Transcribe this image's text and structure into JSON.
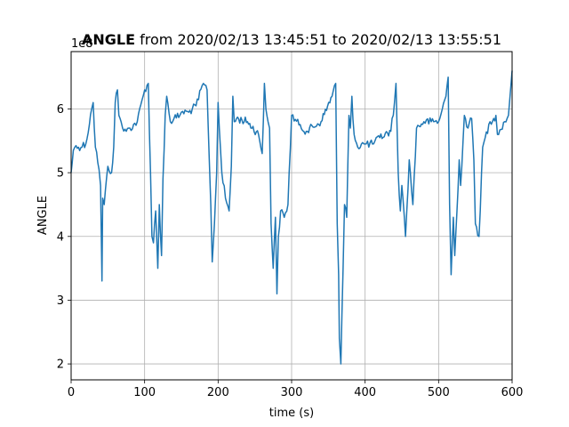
{
  "chart_data": {
    "type": "line",
    "title_bold": "ANGLE",
    "title_rest": " from 2020/02/13 13:45:51 to 2020/02/13 13:55:51",
    "xlabel": "time (s)",
    "ylabel": "ANGLE",
    "offset_label": "1e8",
    "xlim": [
      0,
      600
    ],
    "ylim": [
      1.75,
      6.9
    ],
    "x_ticks": [
      0,
      100,
      200,
      300,
      400,
      500,
      600
    ],
    "y_ticks": [
      2,
      3,
      4,
      5,
      6
    ],
    "grid": true,
    "series": [
      {
        "color": "#1f77b4",
        "x": [
          0,
          3,
          5,
          10,
          20,
          28,
          30,
          33,
          38,
          40,
          42,
          43,
          45,
          50,
          55,
          58,
          60,
          63,
          65,
          68,
          70,
          75,
          80,
          90,
          100,
          105,
          108,
          110,
          112,
          115,
          118,
          120,
          123,
          125,
          128,
          130,
          135,
          140,
          148,
          150,
          160,
          170,
          180,
          185,
          188,
          190,
          192,
          195,
          198,
          200,
          205,
          210,
          215,
          218,
          220,
          222,
          225,
          240,
          255,
          260,
          263,
          265,
          268,
          270,
          272,
          275,
          278,
          280,
          282,
          285,
          290,
          295,
          300,
          310,
          320,
          340,
          355,
          360,
          362,
          364,
          365,
          367,
          370,
          372,
          375,
          378,
          380,
          382,
          385,
          390,
          395,
          400,
          410,
          420,
          435,
          440,
          442,
          445,
          448,
          450,
          455,
          460,
          465,
          470,
          480,
          490,
          500,
          505,
          510,
          513,
          515,
          517,
          520,
          522,
          525,
          528,
          530,
          535,
          540,
          545,
          548,
          550,
          555,
          560,
          570,
          575,
          578,
          580,
          590,
          595,
          600
        ],
        "y": [
          5.0,
          5.35,
          5.4,
          5.4,
          5.45,
          6.0,
          6.1,
          5.4,
          5.05,
          4.8,
          3.3,
          4.6,
          4.5,
          5.1,
          5.0,
          5.4,
          6.1,
          6.3,
          5.9,
          5.8,
          5.7,
          5.65,
          5.7,
          5.8,
          6.3,
          6.4,
          5.0,
          4.0,
          3.9,
          4.4,
          3.5,
          4.5,
          3.7,
          4.9,
          5.9,
          6.2,
          5.8,
          5.85,
          5.9,
          5.95,
          5.95,
          6.05,
          6.4,
          6.3,
          5.2,
          4.5,
          3.6,
          4.2,
          5.0,
          6.1,
          5.0,
          4.6,
          4.4,
          5.1,
          6.2,
          5.8,
          5.85,
          5.8,
          5.6,
          5.3,
          6.4,
          6.0,
          5.8,
          5.7,
          4.2,
          3.5,
          4.3,
          3.1,
          4.0,
          4.4,
          4.3,
          4.5,
          5.9,
          5.75,
          5.65,
          5.8,
          6.2,
          6.4,
          4.2,
          3.4,
          2.4,
          2.0,
          3.5,
          4.5,
          4.3,
          5.9,
          5.7,
          6.2,
          5.6,
          5.4,
          5.45,
          5.45,
          5.45,
          5.55,
          5.65,
          6.1,
          6.4,
          5.0,
          4.4,
          4.8,
          4.0,
          5.2,
          4.5,
          5.7,
          5.8,
          5.8,
          5.8,
          6.0,
          6.2,
          6.5,
          4.5,
          3.4,
          4.3,
          3.7,
          4.4,
          5.2,
          4.8,
          5.9,
          5.7,
          5.85,
          5.2,
          4.2,
          4.0,
          5.4,
          5.8,
          5.85,
          5.9,
          5.6,
          5.8,
          5.9,
          6.6
        ]
      }
    ]
  }
}
